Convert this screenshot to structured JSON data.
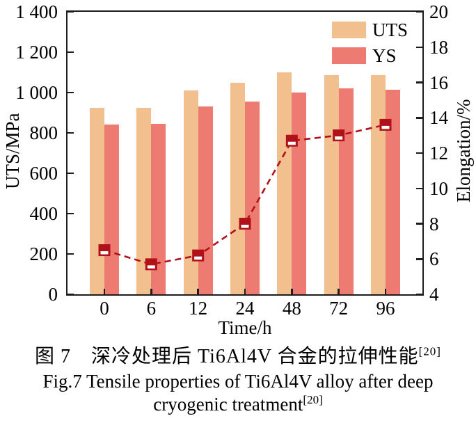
{
  "figure": {
    "caption_zh": "图 7　深冷处理后 Ti6Al4V 合金的拉伸性能",
    "caption_ref": "[20]",
    "caption_en_line1": "Fig.7 Tensile properties of Ti6Al4V alloy after deep",
    "caption_en_line2": "cryogenic treatment"
  },
  "chart_data": {
    "type": "bar",
    "title": "",
    "categories": [
      "0",
      "6",
      "12",
      "24",
      "48",
      "72",
      "96"
    ],
    "x_axis": {
      "label": "Time/h",
      "tick_labels": [
        "0",
        "6",
        "12",
        "24",
        "48",
        "72",
        "96"
      ]
    },
    "left_axis": {
      "label": "UTS/MPa",
      "min": 0,
      "max": 1400,
      "step": 200,
      "tick_labels": [
        "0",
        "200",
        "400",
        "600",
        "800",
        "1 000",
        "1 200",
        "1 400"
      ]
    },
    "right_axis": {
      "label": "Elongation/%",
      "min": 4,
      "max": 20,
      "step": 2,
      "tick_labels": [
        "4",
        "6",
        "8",
        "10",
        "12",
        "14",
        "16",
        "18",
        "20"
      ]
    },
    "series": [
      {
        "name": "UTS",
        "type": "bar",
        "axis": "left",
        "color": "#F2C08F",
        "values": [
          925,
          925,
          1010,
          1050,
          1100,
          1085,
          1085
        ]
      },
      {
        "name": "YS",
        "type": "bar",
        "axis": "left",
        "color": "#EE7B72",
        "values": [
          840,
          845,
          930,
          955,
          1000,
          1020,
          1015
        ]
      },
      {
        "name": "Elongation",
        "type": "line",
        "axis": "right",
        "color": "#B1121A",
        "line_style": "dashed",
        "marker": "half-filled-square",
        "values": [
          6.5,
          5.7,
          6.2,
          8.0,
          12.7,
          13.0,
          13.6
        ]
      }
    ],
    "legend": {
      "position": "top-right",
      "entries": [
        "UTS",
        "YS"
      ]
    },
    "grid": false,
    "axis_color": "#1c1c1c"
  }
}
